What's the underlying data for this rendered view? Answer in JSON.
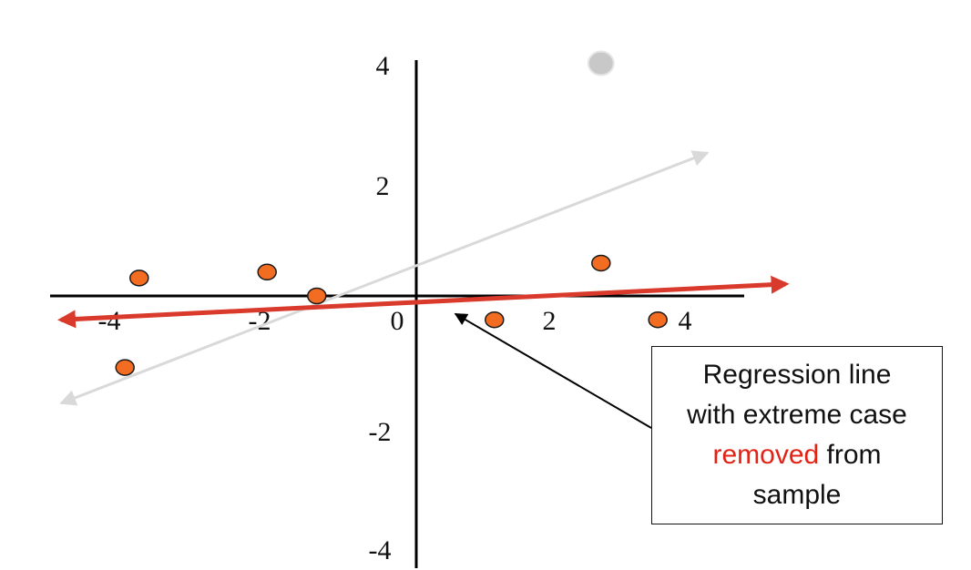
{
  "chart_data": {
    "type": "scatter",
    "title": "",
    "xlabel": "",
    "ylabel": "",
    "xlim": [
      -5,
      4.8
    ],
    "ylim": [
      -4.5,
      4.2
    ],
    "x_ticks": [
      -4,
      -2,
      0,
      2,
      4
    ],
    "x_tick_labels": [
      "-4",
      "-2",
      "0",
      "2",
      "4"
    ],
    "y_ticks": [
      4,
      2,
      -2,
      -4
    ],
    "y_tick_labels": [
      "4",
      "2",
      "-2",
      "-4"
    ],
    "grid": false,
    "legend": "none",
    "series": [
      {
        "points": [
          {
            "x": -3.9,
            "y": 0.3
          },
          {
            "x": -2.1,
            "y": 0.4
          },
          {
            "x": -1.4,
            "y": 0.0
          },
          {
            "x": -4.1,
            "y": -1.2
          },
          {
            "x": 1.1,
            "y": -0.4
          },
          {
            "x": 2.6,
            "y": 0.55
          },
          {
            "x": 3.4,
            "y": -0.4
          }
        ]
      },
      {
        "points": [
          {
            "x": 2.6,
            "y": 3.9
          }
        ]
      }
    ],
    "regression_lines": [
      {
        "x1": -5.0,
        "y1": -1.8,
        "x2": 4.1,
        "y2": 2.4
      },
      {
        "x1": -5.0,
        "y1": -0.4,
        "x2": 5.2,
        "y2": 0.2
      }
    ],
    "annotation": {
      "line1": "Regression line",
      "line2": "with extreme case",
      "line3_highlight": "removed",
      "line3_rest": " from",
      "line4": "sample",
      "points_to": {
        "x": 0.55,
        "y": -0.3
      }
    }
  },
  "colors": {
    "point_fill": "#f26d22",
    "point_stroke": "#1a1a1a",
    "extreme_point": "#c8c8c8",
    "red_line": "#d93a2b",
    "gray_line": "#d9d9d9",
    "axis": "#000000",
    "highlight_text": "#e32216"
  }
}
